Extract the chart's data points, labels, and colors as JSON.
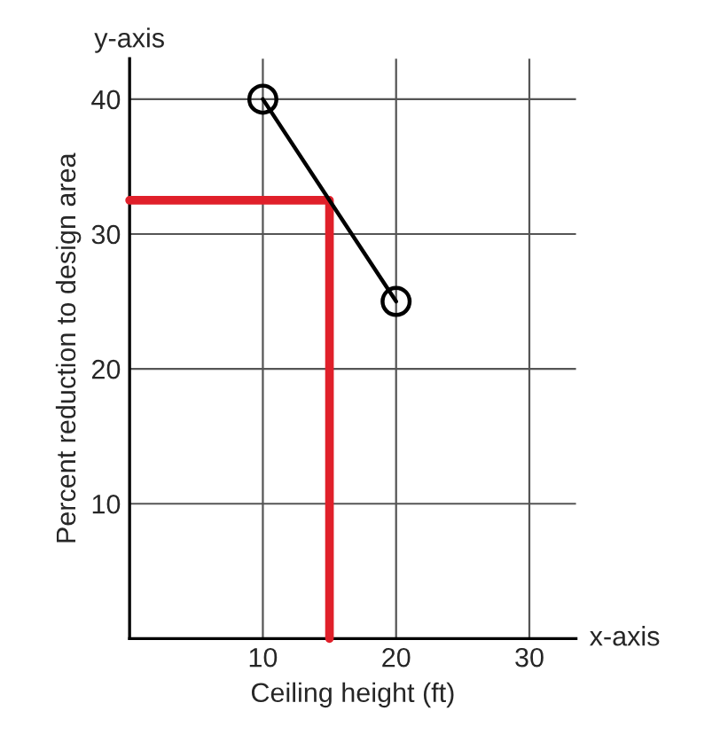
{
  "chart_data": {
    "type": "line",
    "xlabel": "Ceiling height (ft)",
    "ylabel": "Percent reduction to design area",
    "annotations": [
      "y-axis",
      "x-axis"
    ],
    "series": [
      {
        "color": "#000000",
        "x": [
          10,
          20
        ],
        "values": [
          40,
          25
        ],
        "marker": "circle"
      },
      {
        "color": "#e0202a",
        "x": [
          0,
          15,
          15
        ],
        "values": [
          32.5,
          32.5,
          0
        ],
        "marker": "none"
      }
    ],
    "xlim": [
      0,
      33.5
    ],
    "ylim": [
      0,
      43
    ],
    "xticks": [
      10,
      20,
      30
    ],
    "yticks": [
      10,
      20,
      30,
      40
    ],
    "grid": true,
    "legend": false
  }
}
